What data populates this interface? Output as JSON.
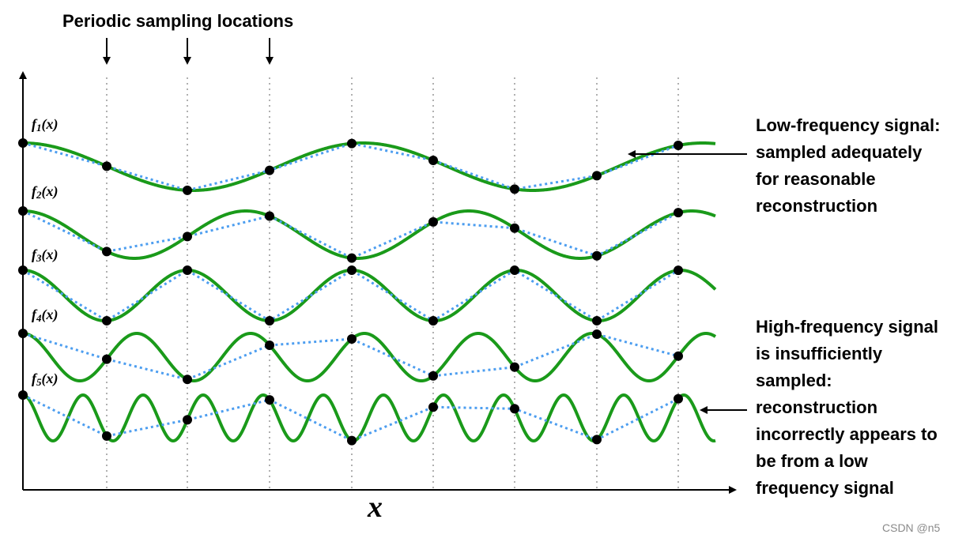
{
  "header": {
    "title": "Periodic sampling locations"
  },
  "axes": {
    "x_label": "x"
  },
  "signals": [
    {
      "id": "f1",
      "name": "f",
      "subscript": "1",
      "suffix": "(x)"
    },
    {
      "id": "f2",
      "name": "f",
      "subscript": "2",
      "suffix": "(x)"
    },
    {
      "id": "f3",
      "name": "f",
      "subscript": "3",
      "suffix": "(x)"
    },
    {
      "id": "f4",
      "name": "f",
      "subscript": "4",
      "suffix": "(x)"
    },
    {
      "id": "f5",
      "name": "f",
      "subscript": "5",
      "suffix": "(x)"
    }
  ],
  "annotations": {
    "low_frequency": [
      "Low-frequency signal:",
      "sampled adequately",
      "for reasonable",
      "reconstruction"
    ],
    "high_frequency": [
      "High-frequency signal",
      "is insufficiently",
      "sampled:",
      "reconstruction",
      "incorrectly appears to",
      "be from a low",
      "frequency signal"
    ]
  },
  "watermark": "CSDN @n5",
  "colors": {
    "signal": "#1a9a1a",
    "reconstruction": "#4d9ef0",
    "sample_point": "#000000",
    "sample_line": "#b0b0b0"
  }
}
